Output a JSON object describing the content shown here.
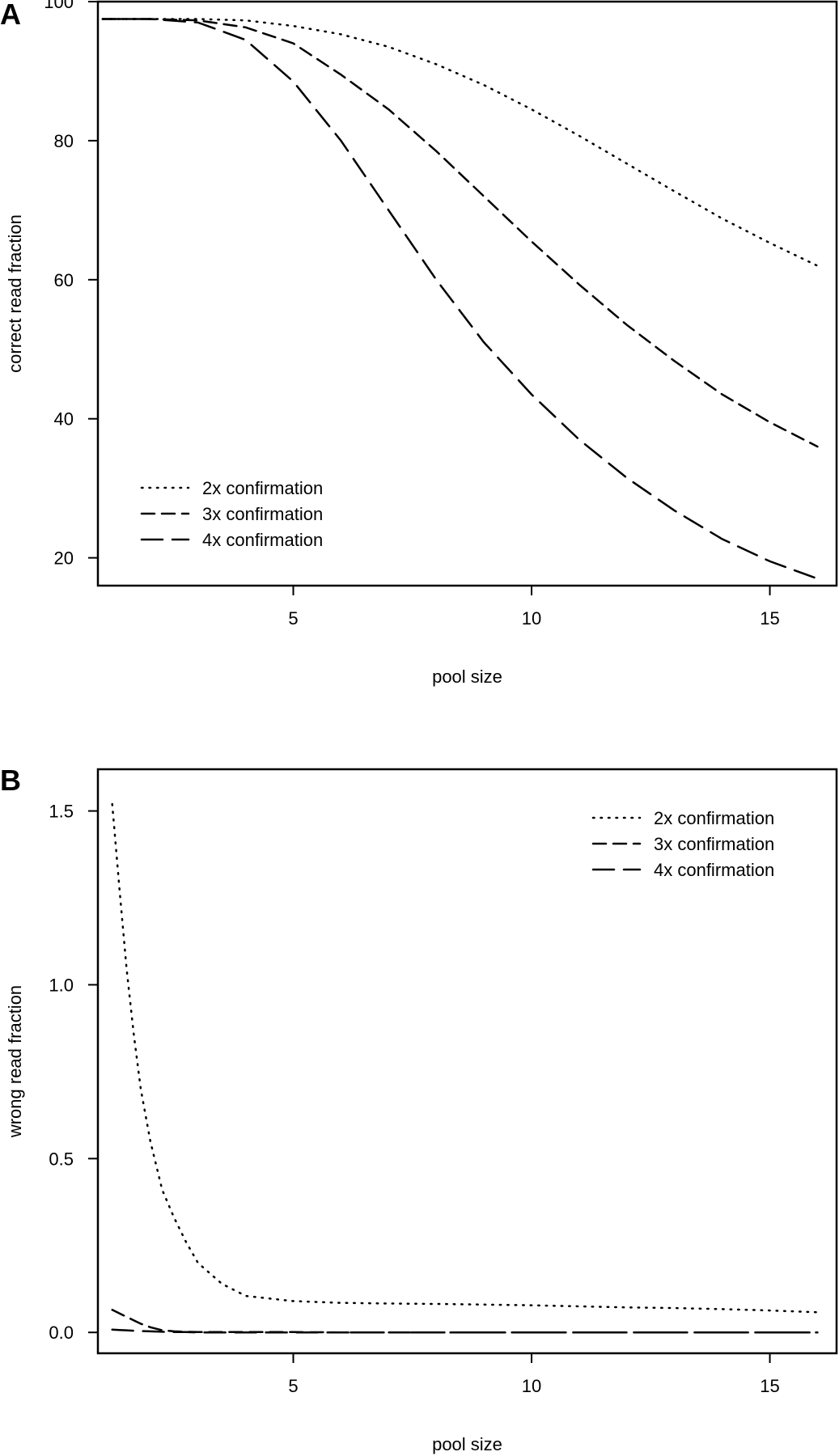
{
  "chart_data": [
    {
      "panel": "A",
      "type": "line",
      "xlabel": "pool size",
      "ylabel": "correct read fraction",
      "xlim": [
        0.9,
        16.4
      ],
      "ylim": [
        16,
        100
      ],
      "xticks": [
        5,
        10,
        15
      ],
      "yticks": [
        20,
        40,
        60,
        80,
        100
      ],
      "x": [
        1,
        2,
        3,
        4,
        5,
        6,
        7,
        8,
        9,
        10,
        11,
        12,
        13,
        14,
        15,
        16
      ],
      "series": [
        {
          "name": "2x confirmation",
          "style": "dotted",
          "values": [
            97.5,
            97.5,
            97.5,
            97.3,
            96.5,
            95.3,
            93.5,
            91.0,
            88.0,
            84.5,
            80.7,
            76.7,
            72.7,
            68.8,
            65.3,
            62.0
          ]
        },
        {
          "name": "3x confirmation",
          "style": "dashed",
          "values": [
            97.5,
            97.5,
            97.3,
            96.3,
            94.0,
            89.5,
            84.5,
            78.5,
            72.0,
            65.5,
            59.3,
            53.5,
            48.3,
            43.5,
            39.5,
            36.0
          ]
        },
        {
          "name": "4x confirmation",
          "style": "longdash",
          "values": [
            97.5,
            97.5,
            97.0,
            94.5,
            88.5,
            80.0,
            70.0,
            60.0,
            51.0,
            43.5,
            37.0,
            31.5,
            26.8,
            22.7,
            19.5,
            17.0
          ]
        }
      ],
      "legend_position": "bottom-left"
    },
    {
      "panel": "B",
      "type": "line",
      "xlabel": "pool size",
      "ylabel": "wrong read fraction",
      "xlim": [
        0.9,
        16.4
      ],
      "ylim": [
        -0.06,
        1.62
      ],
      "xticks": [
        5,
        10,
        15
      ],
      "yticks": [
        0.0,
        0.5,
        1.0,
        1.5
      ],
      "ytick_labels": [
        "0.0",
        "0.5",
        "1.0",
        "1.5"
      ],
      "x": [
        1.2,
        1.35,
        1.5,
        1.65,
        1.8,
        2.0,
        2.25,
        2.5,
        2.75,
        3.0,
        3.5,
        4.0,
        5,
        6,
        7,
        8,
        9,
        10,
        11,
        12,
        13,
        14,
        15,
        16
      ],
      "series": [
        {
          "name": "2x confirmation",
          "style": "dotted",
          "values": [
            1.52,
            1.28,
            1.05,
            0.86,
            0.7,
            0.55,
            0.41,
            0.33,
            0.26,
            0.2,
            0.14,
            0.105,
            0.09,
            0.085,
            0.083,
            0.082,
            0.08,
            0.078,
            0.075,
            0.072,
            0.07,
            0.067,
            0.063,
            0.058
          ]
        },
        {
          "name": "3x confirmation",
          "style": "dashed",
          "values": [
            0.065,
            0.055,
            0.045,
            0.035,
            0.025,
            0.015,
            0.006,
            0.003,
            0.002,
            0.001,
            0.001,
            0.001,
            0.001,
            0.0,
            0.0,
            0.0,
            0.0,
            0.0,
            0.0,
            0.0,
            0.0,
            0.0,
            0.0,
            0.0
          ]
        },
        {
          "name": "4x confirmation",
          "style": "longdash",
          "values": [
            0.008,
            0.007,
            0.006,
            0.005,
            0.004,
            0.003,
            0.002,
            0.001,
            0.001,
            0.0,
            0.0,
            0.0,
            0.0,
            0.0,
            0.0,
            0.0,
            0.0,
            0.0,
            0.0,
            0.0,
            0.0,
            0.0,
            0.0,
            0.0
          ]
        }
      ],
      "legend_position": "top-right"
    }
  ],
  "panels": {
    "a_letter": "A",
    "b_letter": "B"
  }
}
